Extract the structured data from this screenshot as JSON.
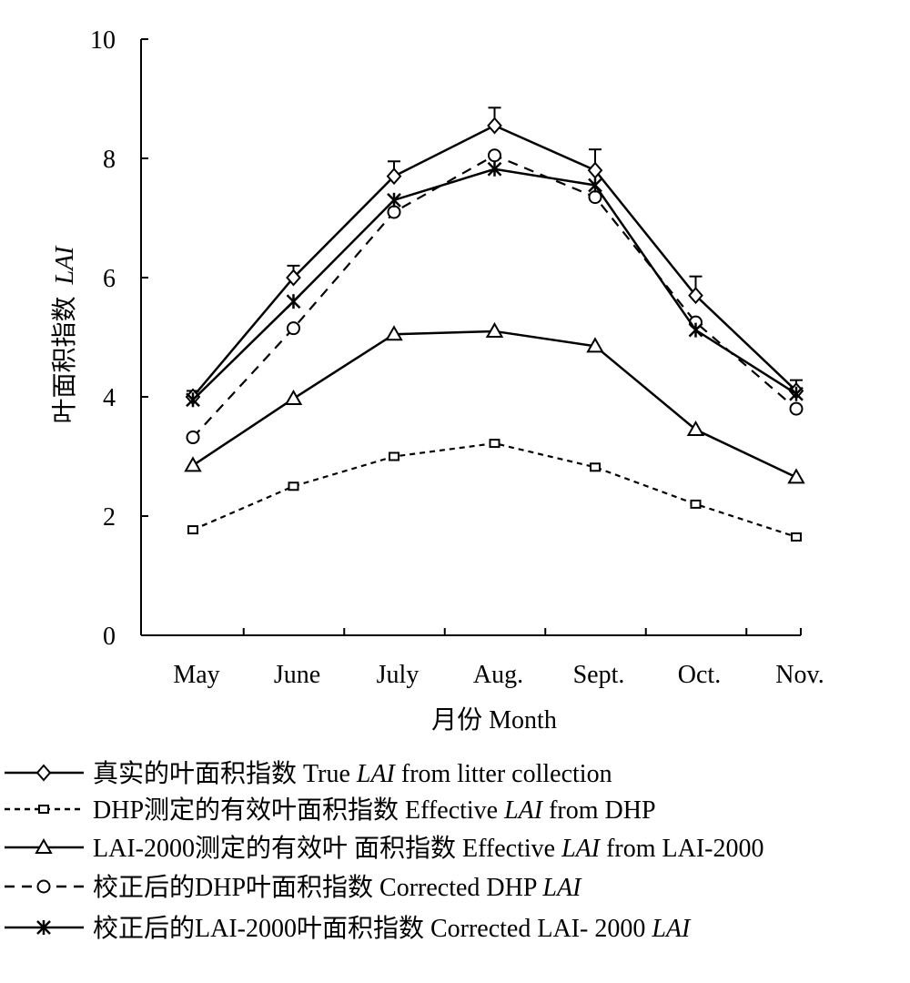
{
  "chart_data": {
    "type": "line",
    "xlabel": "月份 Month",
    "ylabel_cn": "叶面积指数",
    "ylabel_italic": "LAI",
    "ylim": [
      0,
      10
    ],
    "yticks": [
      "0",
      "2",
      "4",
      "6",
      "8",
      "10"
    ],
    "categories": [
      "May",
      "June",
      "July",
      "Aug.",
      "Sept.",
      "Oct.",
      "Nov."
    ],
    "legend_placement": "bottom",
    "series": [
      {
        "marker": "diamond",
        "line": "solid",
        "legend": {
          "prefix": "真实的叶面积指数 True ",
          "italic": "LAI",
          "suffix": " from litter collection"
        },
        "values": [
          4.0,
          6.0,
          7.7,
          8.55,
          7.8,
          5.7,
          4.1
        ],
        "errors": [
          0.1,
          0.2,
          0.25,
          0.3,
          0.35,
          0.32,
          0.18
        ]
      },
      {
        "marker": "square",
        "line": "dotted",
        "legend": {
          "prefix": "DHP测定的有效叶面积指数  Effective ",
          "italic": "LAI",
          "suffix": " from DHP"
        },
        "values": [
          1.77,
          2.5,
          3.0,
          3.22,
          2.82,
          2.2,
          1.65
        ],
        "errors": []
      },
      {
        "marker": "triangle",
        "line": "solid",
        "legend": {
          "prefix": "LAI-2000测定的有效叶 面积指数  Effective ",
          "italic": "LAI",
          "suffix": " from LAI-2000"
        },
        "values": [
          2.85,
          3.97,
          5.05,
          5.1,
          4.85,
          3.45,
          2.65
        ],
        "errors": []
      },
      {
        "marker": "circle",
        "line": "dashed",
        "legend": {
          "prefix": "校正后的DHP叶面积指数 Corrected  DHP ",
          "italic": "LAI",
          "suffix": ""
        },
        "values": [
          3.32,
          5.15,
          7.1,
          8.05,
          7.35,
          5.25,
          3.8
        ],
        "errors": []
      },
      {
        "marker": "star",
        "line": "solid",
        "legend": {
          "prefix": "校正后的LAI-2000叶面积指数 Corrected LAI- 2000 ",
          "italic": "LAI",
          "suffix": ""
        },
        "values": [
          3.95,
          5.6,
          7.3,
          7.82,
          7.55,
          5.12,
          4.05
        ],
        "errors": []
      }
    ]
  }
}
